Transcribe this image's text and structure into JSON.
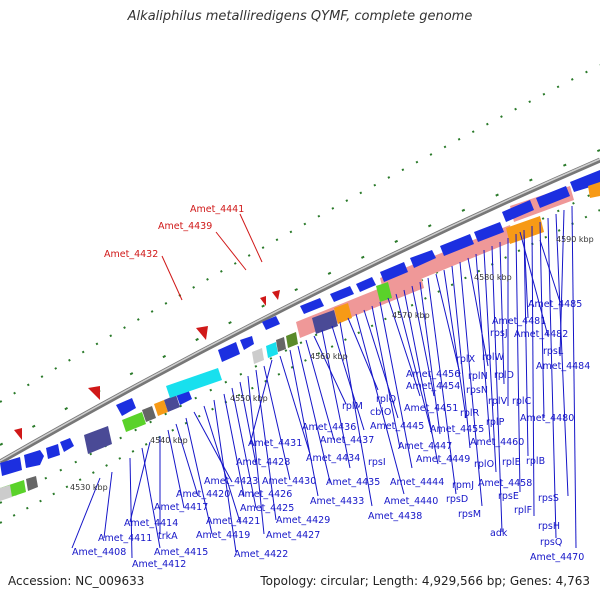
{
  "title": "Alkaliphilus metalliredigens QYMF, complete genome",
  "footer": {
    "accession": "Accession: NC_009633",
    "topology": "Topology: circular; Length: 4,929,566 bp; Genes: 4,763"
  },
  "colors": {
    "backbone": "#8a8a8a",
    "gene_forward": "#1c2fe0",
    "gene_cyan": "#18e0ee",
    "gene_pink": "#ef9898",
    "gene_orange": "#f79a16",
    "gene_green": "#5ad22a",
    "gene_purple": "#4a4a96",
    "label": "#1515c8",
    "highlight": "#d01818",
    "tick": "#2a7a2a"
  },
  "kbp_marks": [
    "4530 kbp",
    "4540 kbp",
    "4550 kbp",
    "4560 kbp",
    "4570 kbp",
    "4580 kbp",
    "4590 kbp"
  ],
  "highlighted_genes": [
    "Amet_4441",
    "Amet_4439",
    "Amet_4432"
  ],
  "gene_labels": [
    "Amet_4485",
    "Amet_4481",
    "Amet_4482",
    "rpsJ",
    "rpsL",
    "Amet_4484",
    "rplX",
    "rplW",
    "rplN",
    "rplD",
    "Amet_4456",
    "Amet_4454",
    "rpsN",
    "rplV",
    "rplC",
    "rplM",
    "rplQ",
    "Amet_4451",
    "rplR",
    "rplP",
    "Amet_4480",
    "cbiO",
    "Amet_4436",
    "Amet_4445",
    "Amet_4455",
    "Amet_4437",
    "Amet_4447",
    "Amet_4460",
    "Amet_4431",
    "rplO",
    "rplE",
    "rplB",
    "Amet_4428",
    "Amet_4434",
    "rpsI",
    "Amet_4449",
    "Amet_4423",
    "Amet_4430",
    "Amet_4435",
    "Amet_4444",
    "rpmJ",
    "Amet_4458",
    "Amet_4420",
    "Amet_4426",
    "Amet_4433",
    "Amet_4440",
    "rpsD",
    "rpsE",
    "rpsS",
    "Amet_4417",
    "Amet_4425",
    "Amet_4438",
    "rplF",
    "Amet_4414",
    "Amet_4421",
    "Amet_4429",
    "rpsM",
    "rpsH",
    "Amet_4411",
    "trkA",
    "Amet_4419",
    "Amet_4427",
    "adk",
    "rpsQ",
    "Amet_4408",
    "Amet_4415",
    "Amet_4422",
    "Amet_4470",
    "Amet_4412"
  ]
}
